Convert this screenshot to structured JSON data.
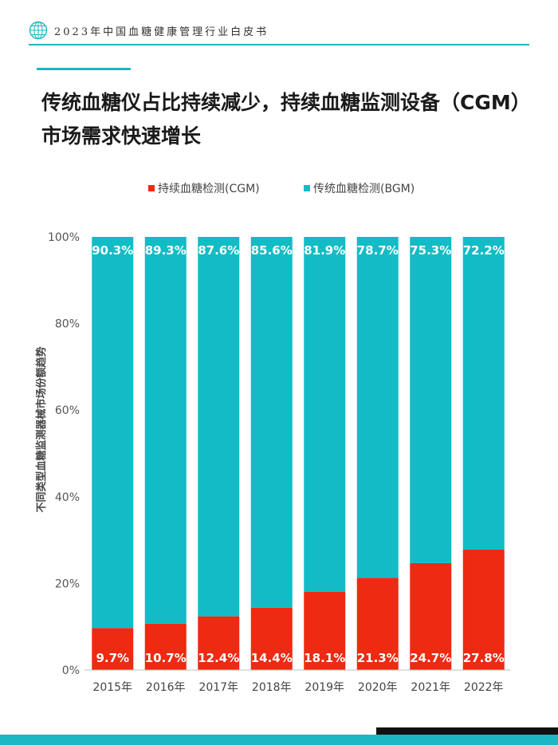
{
  "header": {
    "title": "2023年中国血糖健康管理行业白皮书"
  },
  "main": {
    "title_line1": "传统血糖仪占比持续减少，持续血糖监测设备（CGM）",
    "title_line2": "市场需求快速增长"
  },
  "colors": {
    "accent": "#1bb7c4",
    "cgm": "#ee2a12",
    "bgm": "#12bcc6"
  },
  "chart_data": {
    "type": "bar",
    "stacked": true,
    "ylabel": "不同类型血糖监测器械市场份额趋势",
    "xlabel": "",
    "ylim": [
      0,
      100
    ],
    "yticks": [
      "0%",
      "20%",
      "40%",
      "60%",
      "80%",
      "100%"
    ],
    "grid": false,
    "legend_position": "top-center",
    "categories": [
      "2015年",
      "2016年",
      "2017年",
      "2018年",
      "2019年",
      "2020年",
      "2021年",
      "2022年"
    ],
    "series": [
      {
        "name": "持续血糖检测(CGM)",
        "color": "#ee2a12",
        "values": [
          9.7,
          10.7,
          12.4,
          14.4,
          18.1,
          21.3,
          24.7,
          27.8
        ],
        "labels": [
          "9.7%",
          "10.7%",
          "12.4%",
          "14.4%",
          "18.1%",
          "21.3%",
          "24.7%",
          "27.8%"
        ]
      },
      {
        "name": "传统血糖检测(BGM)",
        "color": "#12bcc6",
        "values": [
          90.3,
          89.3,
          87.6,
          85.6,
          81.9,
          78.7,
          75.3,
          72.2
        ],
        "labels": [
          "90.3%",
          "89.3%",
          "87.6%",
          "85.6%",
          "81.9%",
          "78.7%",
          "75.3%",
          "72.2%"
        ]
      }
    ]
  }
}
